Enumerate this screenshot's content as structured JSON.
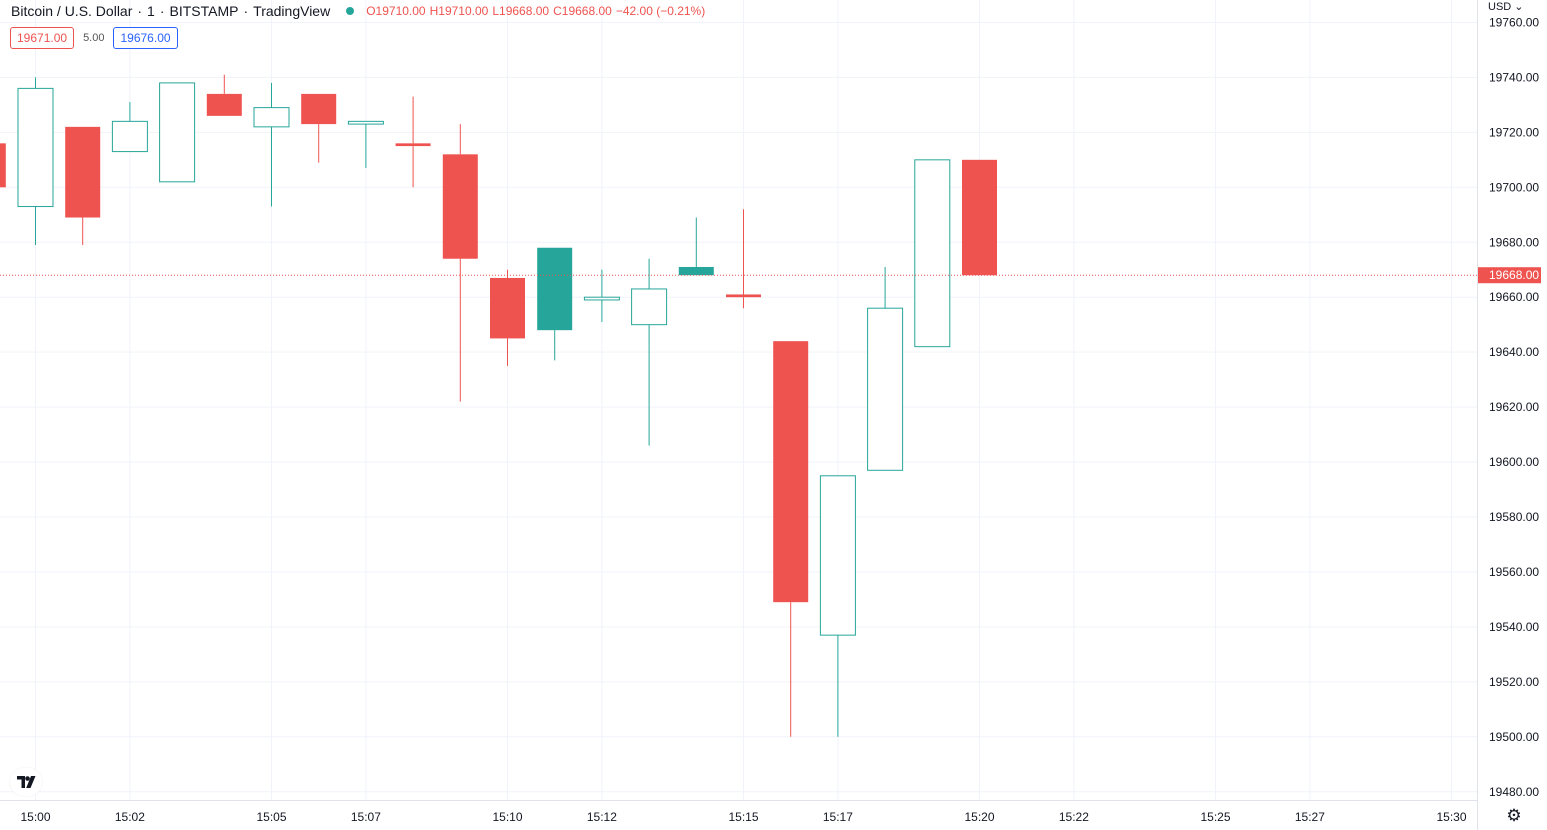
{
  "header": {
    "symbol": "Bitcoin / U.S. Dollar",
    "interval": "1",
    "exchange": "BITSTAMP",
    "provider": "TradingView",
    "separator": "·",
    "o_key": "O",
    "o": "19710.00",
    "h_key": "H",
    "h": "19710.00",
    "l_key": "L",
    "l": "19668.00",
    "c_key": "C",
    "c": "19668.00",
    "change": "−42.00 (−0.21%)"
  },
  "trade": {
    "sell": "19671.00",
    "spread": "5.00",
    "buy": "19676.00"
  },
  "currency_label": "USD ⌄",
  "colors": {
    "up": "#26a69a",
    "down": "#ef5350",
    "grid": "#f0f3fa",
    "axis_text": "#131722",
    "last_price_bg": "#ef5350"
  },
  "icons": {
    "logo": "tradingview-logo-icon",
    "settings": "gear-icon"
  },
  "chart_data": {
    "type": "candlestick",
    "grid": true,
    "last_price": 19668.0,
    "last_price_label": "19668.00",
    "y_ticks": [
      "19480.00",
      "19500.00",
      "19520.00",
      "19540.00",
      "19560.00",
      "19580.00",
      "19600.00",
      "19620.00",
      "19640.00",
      "19660.00",
      "19680.00",
      "19700.00",
      "19720.00",
      "19740.00",
      "19760.00"
    ],
    "x_ticks": [
      "15:00",
      "15:02",
      "15:05",
      "15:07",
      "15:10",
      "15:12",
      "15:15",
      "15:17",
      "15:20",
      "15:22",
      "15:25",
      "15:27",
      "15:30"
    ],
    "candles": [
      {
        "t": "14:59",
        "o": 19716,
        "h": 19716,
        "l": 19700,
        "c": 19700
      },
      {
        "t": "15:00",
        "o": 19693,
        "h": 19740,
        "l": 19679,
        "c": 19736
      },
      {
        "t": "15:01",
        "o": 19722,
        "h": 19722,
        "l": 19679,
        "c": 19689
      },
      {
        "t": "15:02",
        "o": 19713,
        "h": 19731,
        "l": 19713,
        "c": 19724
      },
      {
        "t": "15:03",
        "o": 19702,
        "h": 19738,
        "l": 19702,
        "c": 19738
      },
      {
        "t": "15:04",
        "o": 19734,
        "h": 19741,
        "l": 19726,
        "c": 19726
      },
      {
        "t": "15:05",
        "o": 19722,
        "h": 19738,
        "l": 19693,
        "c": 19729
      },
      {
        "t": "15:06",
        "o": 19734,
        "h": 19734,
        "l": 19709,
        "c": 19723
      },
      {
        "t": "15:07",
        "o": 19723,
        "h": 19724,
        "l": 19707,
        "c": 19724
      },
      {
        "t": "15:08",
        "o": 19716,
        "h": 19733,
        "l": 19700,
        "c": 19715
      },
      {
        "t": "15:09",
        "o": 19712,
        "h": 19723,
        "l": 19622,
        "c": 19674
      },
      {
        "t": "15:10",
        "o": 19667,
        "h": 19670,
        "l": 19635,
        "c": 19645
      },
      {
        "t": "15:11",
        "o": 19648,
        "h": 19678,
        "l": 19637,
        "c": 19678
      },
      {
        "t": "15:12",
        "o": 19659,
        "h": 19670,
        "l": 19651,
        "c": 19660
      },
      {
        "t": "15:13",
        "o": 19650,
        "h": 19674,
        "l": 19606,
        "c": 19663
      },
      {
        "t": "15:14",
        "o": 19668,
        "h": 19689,
        "l": 19668,
        "c": 19671
      },
      {
        "t": "15:15",
        "o": 19661,
        "h": 19692,
        "l": 19656,
        "c": 19660
      },
      {
        "t": "15:16",
        "o": 19644,
        "h": 19644,
        "l": 19500,
        "c": 19549
      },
      {
        "t": "15:17",
        "o": 19537,
        "h": 19595,
        "l": 19500,
        "c": 19595
      },
      {
        "t": "15:18",
        "o": 19597,
        "h": 19671,
        "l": 19597,
        "c": 19656
      },
      {
        "t": "15:19",
        "o": 19642,
        "h": 19710,
        "l": 19642,
        "c": 19710
      },
      {
        "t": "15:20",
        "o": 19710,
        "h": 19710,
        "l": 19668,
        "c": 19668
      }
    ]
  }
}
